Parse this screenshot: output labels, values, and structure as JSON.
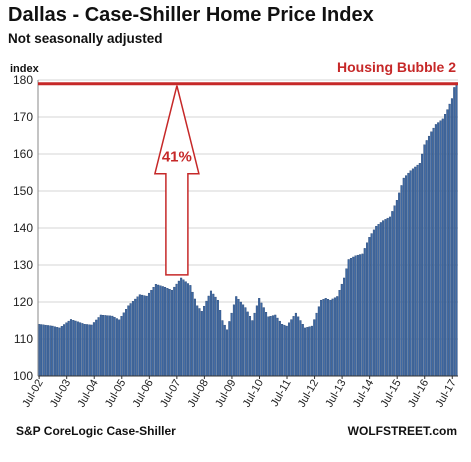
{
  "chart_data": {
    "type": "bar",
    "title": "Dallas - Case-Shiller Home Price Index",
    "subtitle": "Not seasonally adjusted",
    "ylabel": "index",
    "ylim": [
      100,
      180
    ],
    "yticks": [
      100,
      110,
      120,
      130,
      140,
      150,
      160,
      170,
      180
    ],
    "xticks": [
      "Jul-02",
      "Jul-03",
      "Jul-04",
      "Jul-05",
      "Jul-06",
      "Jul-07",
      "Jul-08",
      "Jul-09",
      "Jul-10",
      "Jul-11",
      "Jul-12",
      "Jul-13",
      "Jul-14",
      "Jul-15",
      "Jul-16",
      "Jul-17"
    ],
    "grid": true,
    "series": [
      {
        "color": "#3f69a3",
        "anchors": [
          [
            0,
            114.0
          ],
          [
            6,
            113.5
          ],
          [
            9,
            113.0
          ],
          [
            14,
            115.3
          ],
          [
            20,
            114.0
          ],
          [
            23,
            113.8
          ],
          [
            27,
            116.5
          ],
          [
            32,
            116.2
          ],
          [
            35,
            115.2
          ],
          [
            39,
            119.0
          ],
          [
            44,
            122.0
          ],
          [
            47,
            121.6
          ],
          [
            51,
            124.8
          ],
          [
            55,
            124.0
          ],
          [
            58,
            123.2
          ],
          [
            62,
            126.5
          ],
          [
            66,
            124.5
          ],
          [
            69,
            119.0
          ],
          [
            71,
            117.5
          ],
          [
            75,
            123.0
          ],
          [
            78,
            120.5
          ],
          [
            80,
            115.0
          ],
          [
            82,
            112.5
          ],
          [
            86,
            121.5
          ],
          [
            90,
            118.5
          ],
          [
            93,
            115.0
          ],
          [
            96,
            121.0
          ],
          [
            100,
            116.0
          ],
          [
            103,
            116.5
          ],
          [
            106,
            114.0
          ],
          [
            108,
            113.5
          ],
          [
            112,
            117.0
          ],
          [
            116,
            113.0
          ],
          [
            119,
            113.5
          ],
          [
            123,
            120.5
          ],
          [
            125,
            121.0
          ],
          [
            127,
            120.5
          ],
          [
            130,
            121.5
          ],
          [
            133,
            126.5
          ],
          [
            135,
            131.5
          ],
          [
            138,
            132.5
          ],
          [
            141,
            133.0
          ],
          [
            144,
            137.5
          ],
          [
            147,
            140.5
          ],
          [
            150,
            142.0
          ],
          [
            153,
            143.0
          ],
          [
            156,
            147.5
          ],
          [
            159,
            153.5
          ],
          [
            162,
            155.5
          ],
          [
            164,
            156.5
          ],
          [
            166,
            157.5
          ],
          [
            168,
            162.5
          ],
          [
            171,
            166.0
          ],
          [
            173,
            168.0
          ],
          [
            176,
            169.5
          ],
          [
            178,
            172.0
          ],
          [
            180,
            175.0
          ],
          [
            181,
            178.0
          ],
          [
            182,
            179.3
          ]
        ]
      }
    ],
    "reference_line": {
      "value": 179,
      "label": "Housing Bubble 2",
      "color": "#c62828"
    },
    "annotation": {
      "label": "41%",
      "from": 126.5,
      "to": 179
    }
  },
  "footer": {
    "source": "S&P CoreLogic Case-Shiller",
    "brand": "WOLFSTREET.com"
  }
}
